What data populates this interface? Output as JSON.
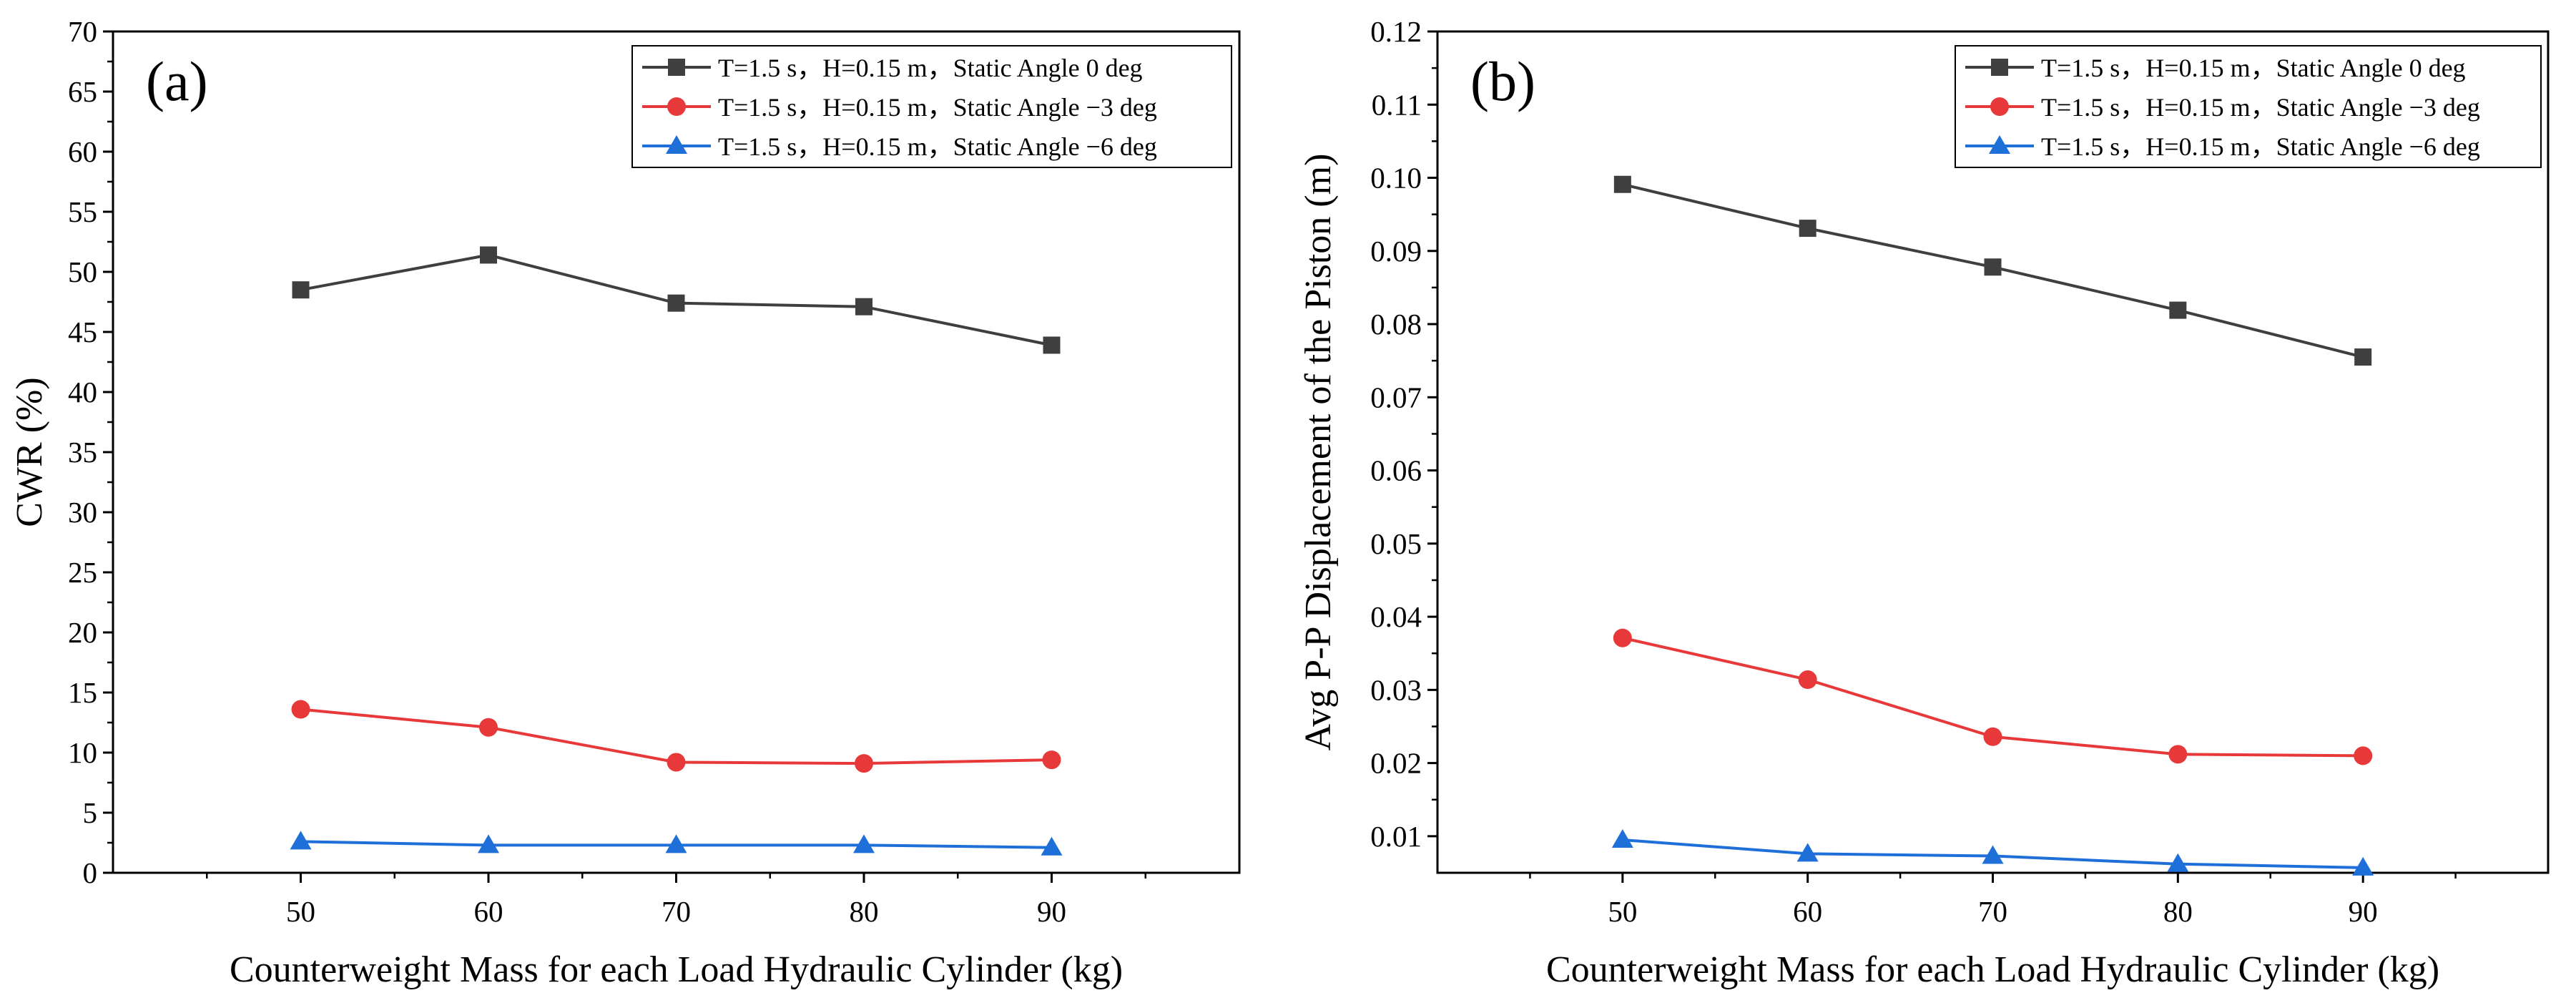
{
  "chart_data": [
    {
      "type": "line",
      "panel_label": "(a)",
      "xlabel": "Counterweight Mass for each Load Hydraulic Cylinder (kg)",
      "ylabel": "CWR (%)",
      "x": [
        50,
        60,
        70,
        80,
        90
      ],
      "xlim": [
        40,
        100
      ],
      "ylim": [
        0,
        70
      ],
      "xticks": [
        50,
        60,
        70,
        80,
        90
      ],
      "yticks": [
        0,
        5,
        10,
        15,
        20,
        25,
        30,
        35,
        40,
        45,
        50,
        55,
        60,
        65,
        70
      ],
      "ytick_labels": [
        "0",
        "5",
        "10",
        "15",
        "20",
        "25",
        "30",
        "35",
        "40",
        "45",
        "50",
        "55",
        "60",
        "65",
        "70"
      ],
      "legend_position": "top-right",
      "series": [
        {
          "name": "T=1.5 s，H=0.15 m，Static Angle  0 deg",
          "color": "#3f3f3f",
          "marker": "square",
          "values": [
            48.5,
            51.4,
            47.4,
            47.1,
            43.9
          ]
        },
        {
          "name": "T=1.5 s，H=0.15 m，Static Angle −3 deg",
          "color": "#e8393a",
          "marker": "circle",
          "values": [
            13.6,
            12.1,
            9.2,
            9.1,
            9.4
          ]
        },
        {
          "name": "T=1.5 s，H=0.15 m，Static Angle −6 deg",
          "color": "#1f6fd8",
          "marker": "triangle",
          "values": [
            2.6,
            2.3,
            2.3,
            2.3,
            2.1
          ]
        }
      ]
    },
    {
      "type": "line",
      "panel_label": "(b)",
      "xlabel": "Counterweight Mass for each Load Hydraulic Cylinder (kg)",
      "ylabel": "Avg P-P Displacement of the Piston  (m)",
      "x": [
        50,
        60,
        70,
        80,
        90
      ],
      "xlim": [
        40,
        100
      ],
      "ylim": [
        0.005,
        0.12
      ],
      "xticks": [
        50,
        60,
        70,
        80,
        90
      ],
      "yticks": [
        0.01,
        0.02,
        0.03,
        0.04,
        0.05,
        0.06,
        0.07,
        0.08,
        0.09,
        0.1,
        0.11,
        0.12
      ],
      "ytick_labels": [
        "0.01",
        "0.02",
        "0.03",
        "0.04",
        "0.05",
        "0.06",
        "0.07",
        "0.08",
        "0.09",
        "0.10",
        "0.11",
        "0.12"
      ],
      "legend_position": "top-right",
      "series": [
        {
          "name": "T=1.5 s，H=0.15 m，Static Angle  0 deg",
          "color": "#3f3f3f",
          "marker": "square",
          "values": [
            0.0991,
            0.0931,
            0.0878,
            0.0819,
            0.0755
          ]
        },
        {
          "name": "T=1.5 s，H=0.15 m，Static Angle −3 deg",
          "color": "#e8393a",
          "marker": "circle",
          "values": [
            0.0371,
            0.0314,
            0.0236,
            0.0212,
            0.021
          ]
        },
        {
          "name": "T=1.5 s，H=0.15 m，Static Angle −6 deg",
          "color": "#1f6fd8",
          "marker": "triangle",
          "values": [
            0.0095,
            0.0076,
            0.0073,
            0.0062,
            0.0057
          ]
        }
      ]
    }
  ]
}
